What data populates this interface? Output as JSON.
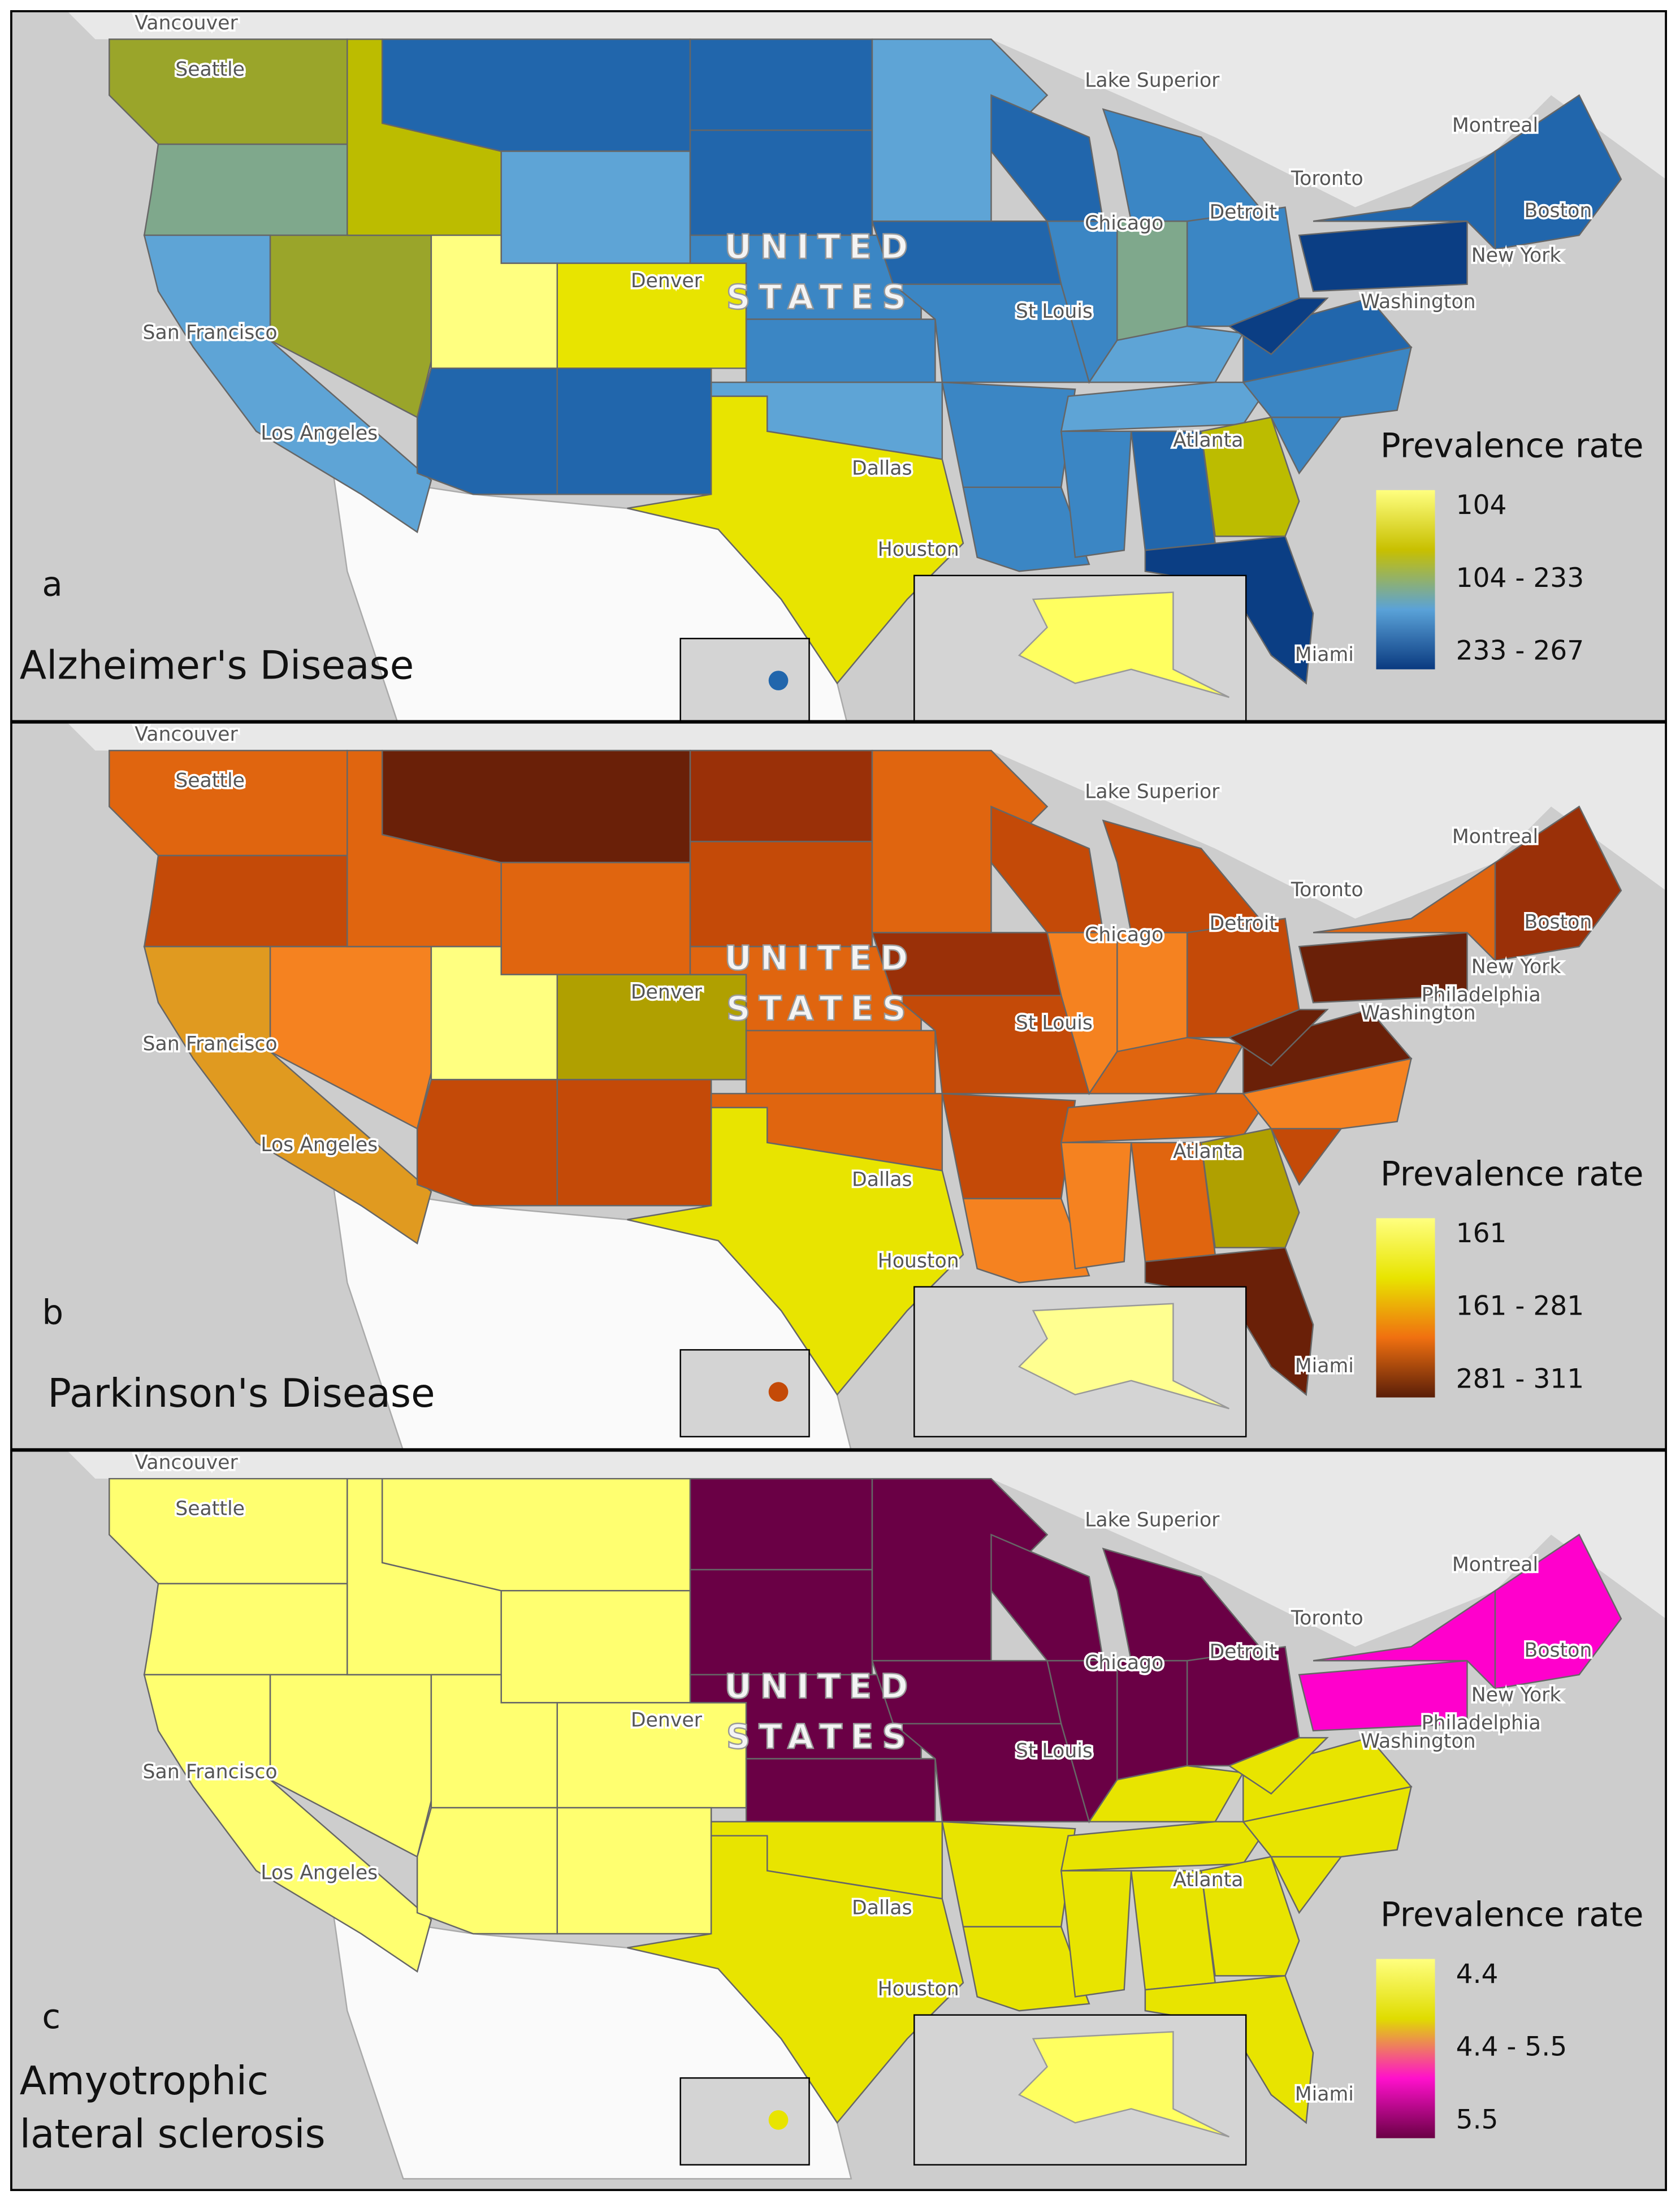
{
  "panels": [
    {
      "letter": "a",
      "disease": [
        "Alzheimer's Disease"
      ],
      "legend": {
        "title": "Prevalence rate",
        "labels": [
          "104",
          "104 - 233",
          "233 - 267"
        ],
        "colors": [
          "#ffff80",
          "#c8c000",
          "#5aa2d8",
          "#0a3a80"
        ]
      },
      "country": [
        "UNITED",
        "STATES"
      ],
      "cities": [
        "Vancouver",
        "Seattle",
        "San Francisco",
        "Los Angeles",
        "Denver",
        "Dallas",
        "Houston",
        "St Louis",
        "Chicago",
        "Detroit",
        "Toronto",
        "Montreal",
        "Boston",
        "New York",
        "Washington",
        "Atlanta",
        "Miami",
        "Lake Superior"
      ]
    },
    {
      "letter": "b",
      "disease": [
        "Parkinson's Disease"
      ],
      "legend": {
        "title": "Prevalence rate",
        "labels": [
          "161",
          "161 - 281",
          "281 - 311"
        ],
        "colors": [
          "#ffff80",
          "#e8e400",
          "#f07010",
          "#5a1e08"
        ]
      },
      "country": [
        "UNITED",
        "STATES"
      ],
      "cities": [
        "Vancouver",
        "Seattle",
        "San Francisco",
        "Los Angeles",
        "Denver",
        "Dallas",
        "Houston",
        "St Louis",
        "Chicago",
        "Detroit",
        "Toronto",
        "Montreal",
        "Boston",
        "New York",
        "Washington",
        "Atlanta",
        "Miami",
        "Lake Superior",
        "Philadelphia"
      ]
    },
    {
      "letter": "c",
      "disease": [
        "Amyotrophic",
        "lateral sclerosis"
      ],
      "legend": {
        "title": "Prevalence rate",
        "labels": [
          "4.4",
          "4.4 - 5.5",
          "5.5"
        ],
        "colors": [
          "#ffff80",
          "#e0dc00",
          "#ff10cc",
          "#6a0045"
        ]
      },
      "country": [
        "UNITED",
        "STATES"
      ],
      "cities": [
        "Vancouver",
        "Seattle",
        "San Francisco",
        "Los Angeles",
        "Denver",
        "Dallas",
        "Houston",
        "St Louis",
        "Chicago",
        "Detroit",
        "Toronto",
        "Montreal",
        "Boston",
        "New York",
        "Washington",
        "Atlanta",
        "Miami",
        "Lake Superior",
        "Philadelphia"
      ]
    }
  ]
}
